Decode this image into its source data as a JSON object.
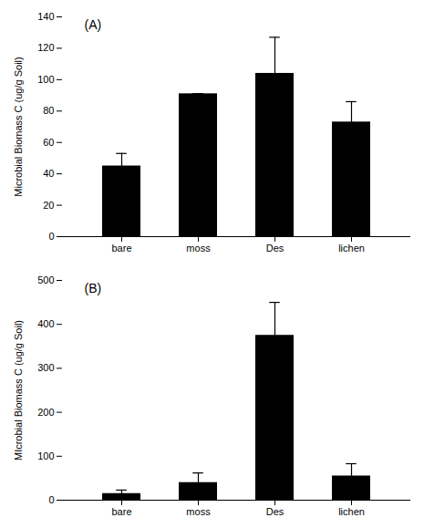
{
  "chart_data": [
    {
      "type": "bar",
      "annotation": "(A)",
      "categories": [
        "bare",
        "moss",
        "Des",
        "lichen"
      ],
      "values": [
        45,
        91,
        104,
        73
      ],
      "errors": [
        8,
        0,
        23,
        13
      ],
      "ylim": [
        0,
        140
      ],
      "yticks": [
        0,
        20,
        40,
        60,
        80,
        100,
        120,
        140
      ],
      "ylabel": "Microbial Biomass C (ug/g Soil)",
      "color": "#000000",
      "grid": false
    },
    {
      "type": "bar",
      "annotation": "(B)",
      "categories": [
        "bare",
        "moss",
        "Des",
        "lichen"
      ],
      "values": [
        15,
        40,
        375,
        55
      ],
      "errors": [
        8,
        22,
        75,
        28
      ],
      "ylim": [
        0,
        500
      ],
      "yticks": [
        0,
        100,
        200,
        300,
        400,
        500
      ],
      "ylabel": "MIcrobial Biomass C (ug/g Soil)",
      "color": "#000000",
      "grid": false
    }
  ]
}
